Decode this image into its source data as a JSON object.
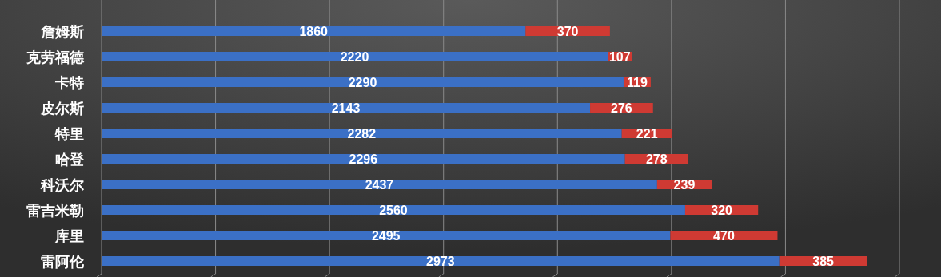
{
  "chart_data": {
    "type": "bar",
    "orientation": "horizontal",
    "stacked": true,
    "categories": [
      "詹姆斯",
      "克劳福德",
      "卡特",
      "皮尔斯",
      "特里",
      "哈登",
      "科沃尔",
      "雷吉米勒",
      "库里",
      "雷阿伦"
    ],
    "series": [
      {
        "color": "#3b70c6",
        "values": [
          1860,
          2220,
          2290,
          2143,
          2282,
          2296,
          2437,
          2560,
          2495,
          2973
        ]
      },
      {
        "color": "#cf3a33",
        "values": [
          370,
          107,
          119,
          276,
          221,
          278,
          239,
          320,
          470,
          385
        ]
      }
    ],
    "xlim": [
      0,
      3500
    ],
    "xticks": [
      {
        "value": 0,
        "label": null
      },
      {
        "value": 500,
        "label": null
      },
      {
        "value": 1000,
        "label": null
      },
      {
        "value": 1500,
        "label": null
      },
      {
        "value": 2000,
        "label": null
      },
      {
        "value": 2500,
        "label": null
      },
      {
        "value": 3000,
        "label": null
      },
      {
        "value": 3500,
        "label": null
      }
    ],
    "grid": "x",
    "data_labels": true,
    "tick_labels": "y"
  }
}
